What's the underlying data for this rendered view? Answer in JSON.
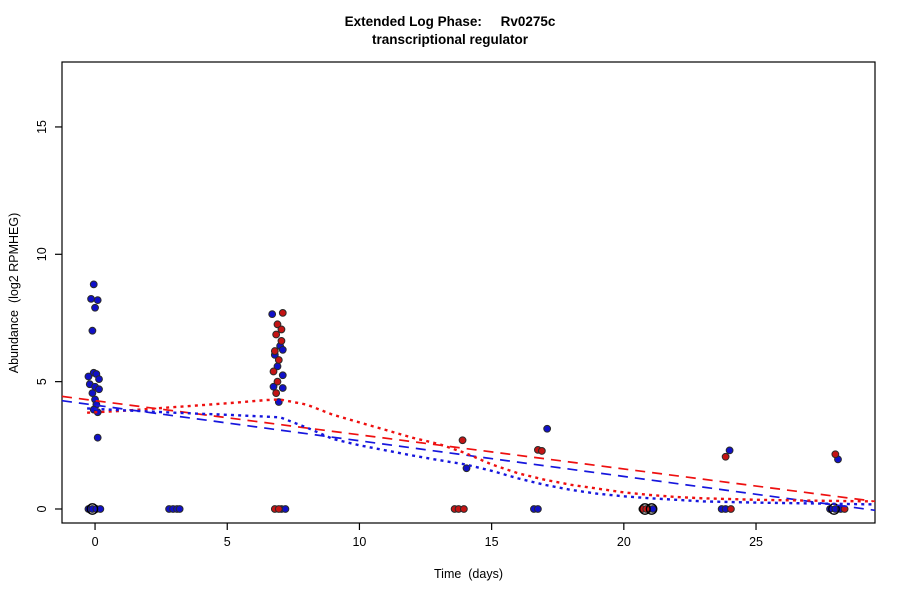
{
  "title": {
    "line1": "Extended Log Phase:     Rv0275c",
    "line2": "transcriptional regulator"
  },
  "chart_data": {
    "type": "scatter",
    "title": "Extended Log Phase: Rv0275c transcriptional regulator",
    "xlabel": "Time  (days)",
    "ylabel": "Abundance  (log2 RPMHEG)",
    "xlim": [
      -1.25,
      29.5
    ],
    "ylim": [
      -0.55,
      17.55
    ],
    "x_ticks": [
      0,
      5,
      10,
      15,
      20,
      25
    ],
    "y_ticks": [
      0,
      5,
      10,
      15
    ],
    "grid": false,
    "legend": false,
    "colors": {
      "blue_points": "#1010c8",
      "red_points": "#c41414",
      "open_circle": "#000000",
      "red_line": "#ee1010",
      "blue_line": "#1616dd",
      "point_edge": "#2a2a2a"
    },
    "series": [
      {
        "name": "blue-filled-points",
        "marker": "filled-circle",
        "color": "#1010c8",
        "points": [
          [
            -0.05,
            8.82
          ],
          [
            -0.15,
            8.25
          ],
          [
            0.1,
            8.2
          ],
          [
            0.0,
            7.9
          ],
          [
            -0.1,
            7.0
          ],
          [
            -0.05,
            5.35
          ],
          [
            0.05,
            5.3
          ],
          [
            -0.25,
            5.2
          ],
          [
            0.15,
            5.1
          ],
          [
            -0.2,
            4.9
          ],
          [
            0.0,
            4.8
          ],
          [
            0.15,
            4.7
          ],
          [
            -0.1,
            4.55
          ],
          [
            0.0,
            4.3
          ],
          [
            0.05,
            4.1
          ],
          [
            -0.05,
            3.9
          ],
          [
            0.1,
            3.8
          ],
          [
            0.1,
            2.8
          ],
          [
            -0.25,
            0
          ],
          [
            -0.1,
            0
          ],
          [
            0.05,
            0
          ],
          [
            0.2,
            0
          ],
          [
            2.8,
            0
          ],
          [
            2.95,
            0
          ],
          [
            3.1,
            0
          ],
          [
            3.2,
            0
          ],
          [
            6.7,
            7.65
          ],
          [
            7.0,
            6.4
          ],
          [
            7.1,
            6.25
          ],
          [
            6.8,
            6.05
          ],
          [
            6.9,
            5.6
          ],
          [
            7.1,
            5.25
          ],
          [
            6.75,
            4.8
          ],
          [
            7.1,
            4.75
          ],
          [
            6.95,
            4.2
          ],
          [
            7.05,
            0
          ],
          [
            7.2,
            0
          ],
          [
            14.05,
            1.6
          ],
          [
            17.1,
            3.15
          ],
          [
            16.6,
            0
          ],
          [
            16.75,
            0
          ],
          [
            20.95,
            0
          ],
          [
            21.1,
            0
          ],
          [
            24.0,
            2.3
          ],
          [
            23.7,
            0
          ],
          [
            23.85,
            0
          ],
          [
            28.1,
            1.95
          ],
          [
            27.8,
            0
          ],
          [
            28.0,
            0
          ],
          [
            28.2,
            0
          ]
        ]
      },
      {
        "name": "red-filled-points",
        "marker": "filled-circle",
        "color": "#c41414",
        "points": [
          [
            7.1,
            7.7
          ],
          [
            6.9,
            7.25
          ],
          [
            7.05,
            7.05
          ],
          [
            6.85,
            6.85
          ],
          [
            7.05,
            6.6
          ],
          [
            6.8,
            6.2
          ],
          [
            6.95,
            5.85
          ],
          [
            6.75,
            5.4
          ],
          [
            6.9,
            5.0
          ],
          [
            6.85,
            4.55
          ],
          [
            6.8,
            0
          ],
          [
            6.95,
            0
          ],
          [
            13.9,
            2.7
          ],
          [
            13.6,
            0
          ],
          [
            13.75,
            0
          ],
          [
            13.95,
            0
          ],
          [
            16.75,
            2.32
          ],
          [
            16.9,
            2.28
          ],
          [
            20.7,
            0
          ],
          [
            20.85,
            0
          ],
          [
            23.85,
            2.05
          ],
          [
            24.05,
            0
          ],
          [
            28.0,
            2.15
          ],
          [
            28.35,
            0
          ]
        ]
      },
      {
        "name": "black-open-circles",
        "marker": "open-circle",
        "color": "#000000",
        "points": [
          [
            -0.1,
            0
          ],
          [
            20.8,
            0
          ],
          [
            21.05,
            0
          ],
          [
            27.95,
            0
          ]
        ]
      }
    ],
    "lines": [
      {
        "name": "red-dashed-linear-fit",
        "color": "#ee1010",
        "style": "dashed",
        "points": [
          [
            -1.25,
            4.42
          ],
          [
            29.5,
            0.3
          ]
        ]
      },
      {
        "name": "blue-dashed-linear-fit",
        "color": "#1616dd",
        "style": "dashed",
        "points": [
          [
            -1.25,
            4.25
          ],
          [
            29.5,
            -0.05
          ]
        ]
      },
      {
        "name": "red-dotted-smooth-fit",
        "color": "#ee1010",
        "style": "dotted",
        "points": [
          [
            -0.3,
            3.78
          ],
          [
            1,
            3.85
          ],
          [
            3,
            4.0
          ],
          [
            5,
            4.15
          ],
          [
            6.5,
            4.28
          ],
          [
            7,
            4.3
          ],
          [
            8,
            4.1
          ],
          [
            9,
            3.7
          ],
          [
            10,
            3.4
          ],
          [
            11,
            3.1
          ],
          [
            12,
            2.8
          ],
          [
            13,
            2.55
          ],
          [
            14,
            2.2
          ],
          [
            15,
            1.75
          ],
          [
            16,
            1.4
          ],
          [
            17,
            1.15
          ],
          [
            18,
            0.95
          ],
          [
            19,
            0.8
          ],
          [
            20,
            0.65
          ],
          [
            21,
            0.55
          ],
          [
            22,
            0.47
          ],
          [
            23,
            0.42
          ],
          [
            25,
            0.36
          ],
          [
            27,
            0.33
          ],
          [
            29.4,
            0.3
          ]
        ]
      },
      {
        "name": "blue-dotted-smooth-fit",
        "color": "#1616dd",
        "style": "dotted",
        "points": [
          [
            -0.3,
            3.95
          ],
          [
            1,
            3.88
          ],
          [
            3,
            3.78
          ],
          [
            5,
            3.7
          ],
          [
            7,
            3.6
          ],
          [
            8,
            3.2
          ],
          [
            9,
            2.75
          ],
          [
            10,
            2.5
          ],
          [
            11,
            2.3
          ],
          [
            12,
            2.1
          ],
          [
            13,
            1.92
          ],
          [
            14,
            1.75
          ],
          [
            15,
            1.5
          ],
          [
            16,
            1.2
          ],
          [
            17,
            0.95
          ],
          [
            18,
            0.75
          ],
          [
            19,
            0.6
          ],
          [
            20,
            0.5
          ],
          [
            21,
            0.42
          ],
          [
            22,
            0.36
          ],
          [
            23,
            0.3
          ],
          [
            25,
            0.25
          ],
          [
            27,
            0.22
          ],
          [
            29.4,
            0.18
          ]
        ]
      }
    ]
  }
}
